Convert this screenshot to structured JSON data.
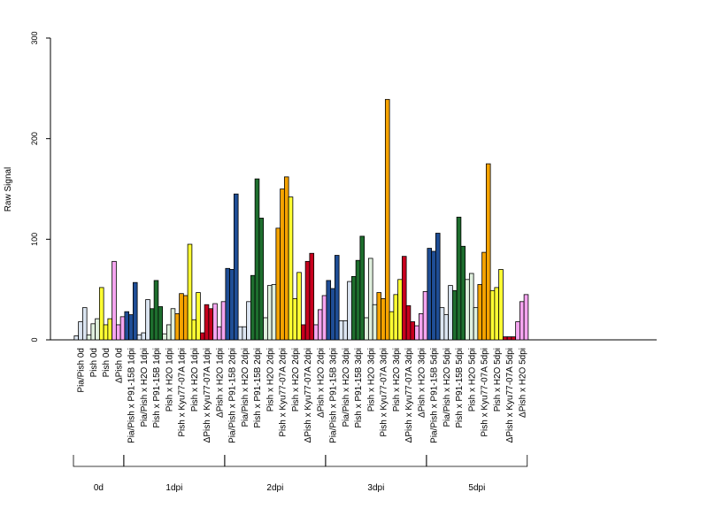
{
  "chart_data": {
    "type": "bar",
    "ylabel": "Raw Signal",
    "ylim": [
      0,
      300
    ],
    "yticks": [
      0,
      100,
      200,
      300
    ],
    "bars_per_category": 3,
    "categories": [
      {
        "label": "Pia/Pish 0d",
        "color": "#dce6f2",
        "values": [
          4,
          18,
          32
        ]
      },
      {
        "label": "Pish 0d",
        "color": "#e0f0de",
        "values": [
          5,
          16,
          21
        ]
      },
      {
        "label": "Pish 0d",
        "color": "#ffff33",
        "values": [
          52,
          15,
          21
        ]
      },
      {
        "label": "ΔPish 0d",
        "color": "#f5a5f0",
        "values": [
          78,
          15,
          23
        ]
      },
      {
        "label": "Pia/Pish x P91-15B 1dpi",
        "color": "#1f4e96",
        "values": [
          28,
          25,
          57
        ]
      },
      {
        "label": "Pia/Pish x H2O 1dpi",
        "color": "#dce6f2",
        "values": [
          5,
          7,
          40
        ]
      },
      {
        "label": "Pish x P91-15B 1dpi",
        "color": "#1e6e2e",
        "values": [
          31,
          59,
          33
        ]
      },
      {
        "label": "Pish x H2O 1dpi",
        "color": "#e0f0de",
        "values": [
          6,
          15,
          31
        ]
      },
      {
        "label": "Pish x Kyu77-07A 1dpi",
        "color": "#f5a300",
        "values": [
          26,
          46,
          44
        ]
      },
      {
        "label": "Pish x H2O 1dpi",
        "color": "#ffff33",
        "values": [
          95,
          20,
          47
        ]
      },
      {
        "label": "ΔPish x Kyu77-07A 1dpi",
        "color": "#c8001e",
        "values": [
          7,
          35,
          31
        ]
      },
      {
        "label": "ΔPish x H2O 1dpi",
        "color": "#f5a5f0",
        "values": [
          36,
          13,
          38
        ]
      },
      {
        "label": "Pia/Pish x P91-15B 2dpi",
        "color": "#1f4e96",
        "values": [
          71,
          70,
          145
        ]
      },
      {
        "label": "Pia/Pish x H2O 2dpi",
        "color": "#dce6f2",
        "values": [
          13,
          13,
          38
        ]
      },
      {
        "label": "Pish x P91-15B 2dpi",
        "color": "#1e6e2e",
        "values": [
          64,
          160,
          121
        ]
      },
      {
        "label": "Pish x H2O 2dpi",
        "color": "#e0f0de",
        "values": [
          22,
          54,
          55
        ]
      },
      {
        "label": "Pish x Kyu77-07A 2dpi",
        "color": "#f5a300",
        "values": [
          111,
          150,
          162
        ]
      },
      {
        "label": "Pish x H2O 2dpi",
        "color": "#ffff33",
        "values": [
          142,
          41,
          67
        ]
      },
      {
        "label": "ΔPish x Kyu77-07A 2dpi",
        "color": "#c8001e",
        "values": [
          15,
          78,
          86
        ]
      },
      {
        "label": "ΔPish x H2O 2dpi",
        "color": "#f5a5f0",
        "values": [
          15,
          30,
          44
        ]
      },
      {
        "label": "Pia/Pish x P91-15B 3dpi",
        "color": "#1f4e96",
        "values": [
          59,
          51,
          84
        ]
      },
      {
        "label": "Pia/Pish x H2O 3dpi",
        "color": "#dce6f2",
        "values": [
          19,
          19,
          58
        ]
      },
      {
        "label": "Pish x P91-15B 3dpi",
        "color": "#1e6e2e",
        "values": [
          63,
          79,
          103
        ]
      },
      {
        "label": "Pish x H2O 3dpi",
        "color": "#e0f0de",
        "values": [
          22,
          81,
          35
        ]
      },
      {
        "label": "Pish x Kyu77-07A 3dpi",
        "color": "#f5a300",
        "values": [
          47,
          41,
          239
        ]
      },
      {
        "label": "Pish x H2O 3dpi",
        "color": "#ffff33",
        "values": [
          28,
          45,
          60
        ]
      },
      {
        "label": "ΔPish x Kyu77-07A 3dpi",
        "color": "#c8001e",
        "values": [
          83,
          34,
          18
        ]
      },
      {
        "label": "ΔPish x H2O 3dpi",
        "color": "#f5a5f0",
        "values": [
          14,
          26,
          48
        ]
      },
      {
        "label": "Pia/Pish x P91-15B 5dpi",
        "color": "#1f4e96",
        "values": [
          91,
          88,
          106
        ]
      },
      {
        "label": "Pia/Pish x H2O 5dpi",
        "color": "#dce6f2",
        "values": [
          32,
          25,
          54
        ]
      },
      {
        "label": "Pish x P91-15B 5dpi",
        "color": "#1e6e2e",
        "values": [
          49,
          122,
          93
        ]
      },
      {
        "label": "Pish x H2O 5dpi",
        "color": "#e0f0de",
        "values": [
          60,
          66,
          32
        ]
      },
      {
        "label": "Pish x Kyu77-07A 5dpi",
        "color": "#f5a300",
        "values": [
          55,
          87,
          175
        ]
      },
      {
        "label": "Pish x H2O 5dpi",
        "color": "#ffff33",
        "values": [
          49,
          52,
          70
        ]
      },
      {
        "label": "ΔPish x Kyu77-07A 5dpi",
        "color": "#c8001e",
        "values": [
          3,
          3,
          3
        ]
      },
      {
        "label": "ΔPish x H2O 5dpi",
        "color": "#f5a5f0",
        "values": [
          18,
          38,
          45
        ]
      }
    ],
    "groups": [
      {
        "label": "0d",
        "first": 0,
        "last": 3
      },
      {
        "label": "1dpi",
        "first": 4,
        "last": 11
      },
      {
        "label": "2dpi",
        "first": 12,
        "last": 19
      },
      {
        "label": "3dpi",
        "first": 20,
        "last": 27
      },
      {
        "label": "5dpi",
        "first": 28,
        "last": 35
      }
    ]
  }
}
